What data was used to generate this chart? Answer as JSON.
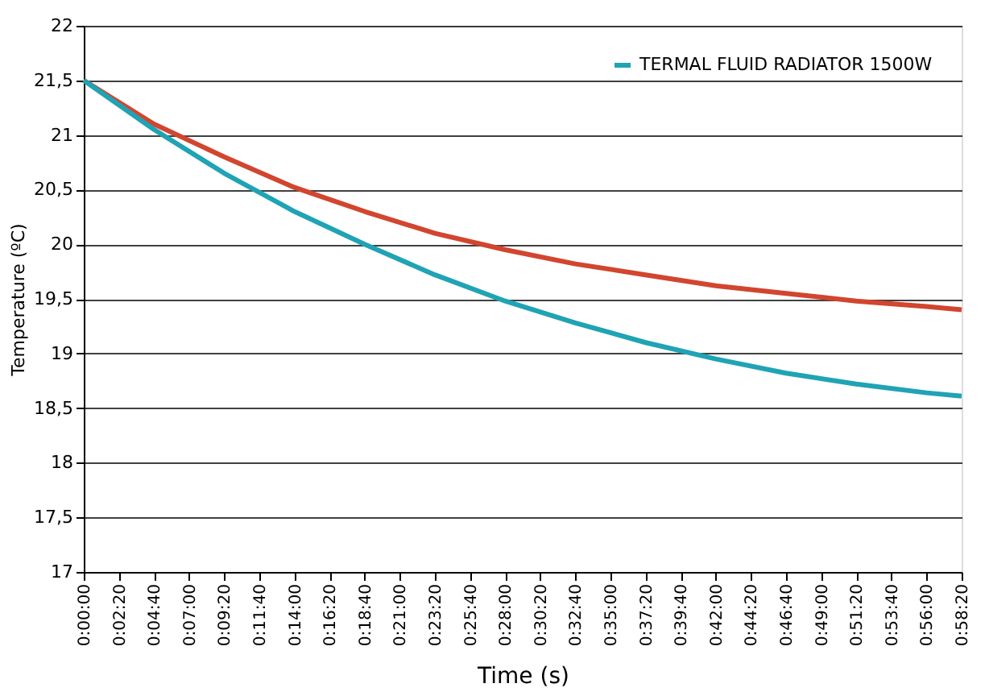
{
  "chart_data": {
    "type": "line",
    "xlabel": "Time (s)",
    "ylabel": "Temperature (ºC)",
    "x": [
      0,
      280,
      560,
      840,
      1120,
      1400,
      1680,
      1960,
      2240,
      2520,
      2800,
      3080,
      3360,
      3500
    ],
    "series": [
      {
        "color": "#d2452f",
        "values": [
          21.5,
          21.1,
          20.8,
          20.52,
          20.3,
          20.1,
          19.95,
          19.82,
          19.72,
          19.62,
          19.55,
          19.48,
          19.43,
          19.4
        ]
      },
      {
        "name": "TERMAL FLUID RADIATOR 1500W",
        "color": "#1fa3b5",
        "values": [
          21.5,
          21.05,
          20.65,
          20.3,
          20.0,
          19.72,
          19.48,
          19.28,
          19.1,
          18.95,
          18.82,
          18.72,
          18.64,
          18.61
        ]
      }
    ],
    "xlim": [
      0,
      3500
    ],
    "xticks": [
      {
        "value": 0,
        "label": "0:00:00"
      },
      {
        "value": 140,
        "label": "0:02:20"
      },
      {
        "value": 280,
        "label": "0:04:40"
      },
      {
        "value": 420,
        "label": "0:07:00"
      },
      {
        "value": 560,
        "label": "0:09:20"
      },
      {
        "value": 700,
        "label": "0:11:40"
      },
      {
        "value": 840,
        "label": "0:14:00"
      },
      {
        "value": 980,
        "label": "0:16:20"
      },
      {
        "value": 1120,
        "label": "0:18:40"
      },
      {
        "value": 1260,
        "label": "0:21:00"
      },
      {
        "value": 1400,
        "label": "0:23:20"
      },
      {
        "value": 1540,
        "label": "0:25:40"
      },
      {
        "value": 1680,
        "label": "0:28:00"
      },
      {
        "value": 1820,
        "label": "0:30:20"
      },
      {
        "value": 1960,
        "label": "0:32:40"
      },
      {
        "value": 2100,
        "label": "0:35:00"
      },
      {
        "value": 2240,
        "label": "0:37:20"
      },
      {
        "value": 2380,
        "label": "0:39:40"
      },
      {
        "value": 2520,
        "label": "0:42:00"
      },
      {
        "value": 2660,
        "label": "0:44:20"
      },
      {
        "value": 2800,
        "label": "0:46:40"
      },
      {
        "value": 2940,
        "label": "0:49:00"
      },
      {
        "value": 3080,
        "label": "0:51:20"
      },
      {
        "value": 3220,
        "label": "0:53:40"
      },
      {
        "value": 3360,
        "label": "0:56:00"
      },
      {
        "value": 3500,
        "label": "0:58:20"
      }
    ],
    "ylim": [
      17,
      22
    ],
    "yticks": [
      17,
      {
        "value": 17.5,
        "label": "17,5"
      },
      18,
      {
        "value": 18.5,
        "label": "18,5"
      },
      19,
      {
        "value": 19.5,
        "label": "19,5"
      },
      20,
      {
        "value": 20.5,
        "label": "20,5"
      },
      21,
      {
        "value": 21.5,
        "label": "21,5"
      },
      22
    ],
    "grid": "y",
    "legend": "top right",
    "marker": "none",
    "line_style": "solid"
  }
}
